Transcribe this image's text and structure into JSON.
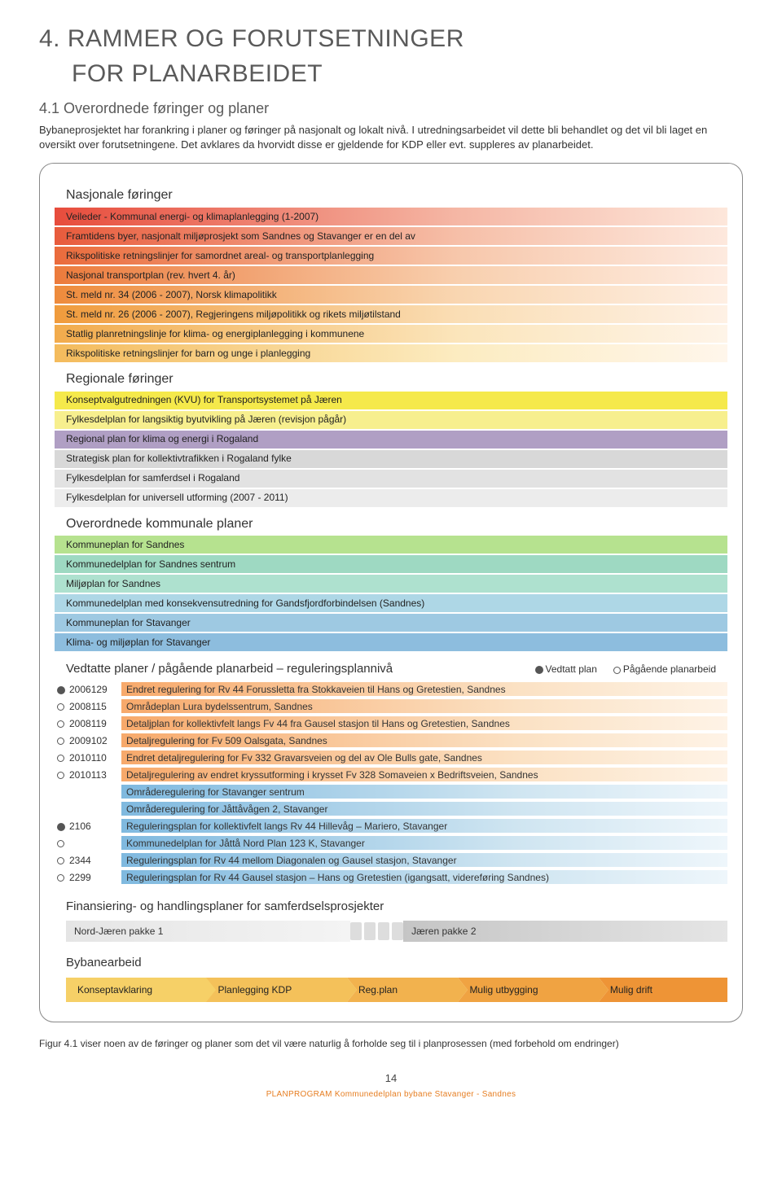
{
  "page": {
    "title_line1": "4. RAMMER OG FORUTSETNINGER",
    "title_line2": "FOR PLANARBEIDET",
    "subhead": "4.1 Overordnede føringer og planer",
    "para1": "Bybaneprosjektet har forankring i planer og føringer på nasjonalt og lokalt nivå. I utredningsarbeidet vil dette bli behandlet og det vil bli laget en oversikt over forutsetningene. Det avklares da hvorvidt disse er gjeldende for KDP eller evt. suppleres av planarbeidet.",
    "page_number": "14",
    "footer_link": "PLANPROGRAM Kommunedelplan bybane Stavanger - Sandnes",
    "caption": "Figur 4.1 viser noen av de føringer og planer som det vil være naturlig å forholde seg til i planprosessen (med forbehold om endringer)"
  },
  "legend": {
    "vedtatt": "Vedtatt plan",
    "pagaende": "Pågående planarbeid"
  },
  "sections": {
    "nasjonale_title": "Nasjonale føringer",
    "regionale_title": "Regionale føringer",
    "kommunale_title": "Overordnede kommunale planer",
    "vedtatte_title": "Vedtatte planer / pågående planarbeid – reguleringsplannivå",
    "finans_title": "Finansiering- og handlingsplaner for samferdselsprosjekter",
    "bybane_title": "Bybanearbeid"
  },
  "nasjonale": [
    "Veileder - Kommunal energi- og klimaplanlegging (1-2007)",
    "Framtidens byer, nasjonalt miljøprosjekt som Sandnes og Stavanger er en del av",
    "Rikspolitiske retningslinjer for samordnet areal- og transportplanlegging",
    "Nasjonal transportplan (rev. hvert 4. år)",
    "St. meld nr. 34 (2006 - 2007), Norsk klimapolitikk",
    "St. meld nr. 26 (2006 - 2007), Regjeringens miljøpolitikk og rikets miljøtilstand",
    "Statlig planretningslinje for klima- og energiplanlegging i kommunene",
    "Rikspolitiske retningslinjer for barn og unge i planlegging"
  ],
  "regionale": [
    "Konseptvalgutredningen (KVU) for Transportsystemet på Jæren",
    "Fylkesdelplan for langsiktig byutvikling på Jæren (revisjon pågår)",
    "Regional plan for klima og energi i Rogaland",
    "Strategisk plan for kollektivtrafikken i Rogaland fylke",
    "Fylkesdelplan for samferdsel i Rogaland",
    "Fylkesdelplan for universell utforming (2007 - 2011)"
  ],
  "kommunale": [
    "Kommuneplan for Sandnes",
    "Kommunedelplan for Sandnes sentrum",
    "Miljøplan for Sandnes",
    "Kommunedelplan med konsekvensutredning for Gandsfjordforbindelsen (Sandnes)",
    "Kommuneplan for Stavanger",
    "Klima- og miljøplan for Stavanger"
  ],
  "plans": [
    {
      "marker": "filled",
      "code": "2006129",
      "desc": "Endret regulering for Rv 44 Forussletta fra Stokkaveien til Hans og Gretestien, Sandnes",
      "style": "warm"
    },
    {
      "marker": "open",
      "code": "2008115",
      "desc": "Områdeplan Lura bydelssentrum, Sandnes",
      "style": "warm"
    },
    {
      "marker": "open",
      "code": "2008119",
      "desc": "Detaljplan for kollektivfelt langs Fv 44 fra Gausel stasjon til Hans og Gretestien, Sandnes",
      "style": "warm"
    },
    {
      "marker": "open",
      "code": "2009102",
      "desc": "Detaljregulering for Fv 509 Oalsgata, Sandnes",
      "style": "warm"
    },
    {
      "marker": "open",
      "code": "2010110",
      "desc": "Endret detaljregulering for Fv 332 Gravarsveien og del av Ole Bulls gate, Sandnes",
      "style": "warm"
    },
    {
      "marker": "open",
      "code": "2010113",
      "desc": "Detaljregulering av endret kryssutforming i krysset Fv 328 Somaveien x Bedriftsveien, Sandnes",
      "style": "warm"
    },
    {
      "marker": "",
      "code": "",
      "desc": "Områderegulering for Stavanger sentrum",
      "style": "blue"
    },
    {
      "marker": "",
      "code": "",
      "desc": "Områderegulering for Jåttåvågen 2, Stavanger",
      "style": "blue"
    },
    {
      "marker": "filled",
      "code": "2106",
      "desc": "Reguleringsplan for kollektivfelt langs Rv 44 Hillevåg – Mariero, Stavanger",
      "style": "blue"
    },
    {
      "marker": "open",
      "code": "",
      "desc": "Kommunedelplan for Jåttå Nord Plan 123 K, Stavanger",
      "style": "blue"
    },
    {
      "marker": "open",
      "code": "2344",
      "desc": "Reguleringsplan for Rv 44 mellom Diagonalen og Gausel stasjon, Stavanger",
      "style": "blue"
    },
    {
      "marker": "open",
      "code": "2299",
      "desc": "Reguleringsplan for Rv 44 Gausel stasjon – Hans og Gretestien (igangsatt, videreføring Sandnes)",
      "style": "blue"
    }
  ],
  "finans": {
    "njp": "Nord-Jæren pakke 1",
    "jp2": "Jæren pakke 2"
  },
  "arrows": [
    "Konseptavklaring",
    "Planlegging KDP",
    "Reg.plan",
    "Mulig utbygging",
    "Mulig drift"
  ],
  "nasjonale_colors": [
    "grad-red1",
    "grad-red2",
    "grad-red3",
    "grad-red4",
    "grad-red5",
    "grad-red6",
    "grad-red7",
    "grad-red8"
  ],
  "regionale_colors": [
    "reg-yellow",
    "reg-lyellow",
    "reg-purple",
    "reg-grey1",
    "reg-grey2",
    "reg-grey3"
  ],
  "kommunale_colors": [
    "kom-green",
    "kom-teal",
    "kom-lteal",
    "kom-blue1",
    "kom-blue2",
    "kom-blue3"
  ]
}
